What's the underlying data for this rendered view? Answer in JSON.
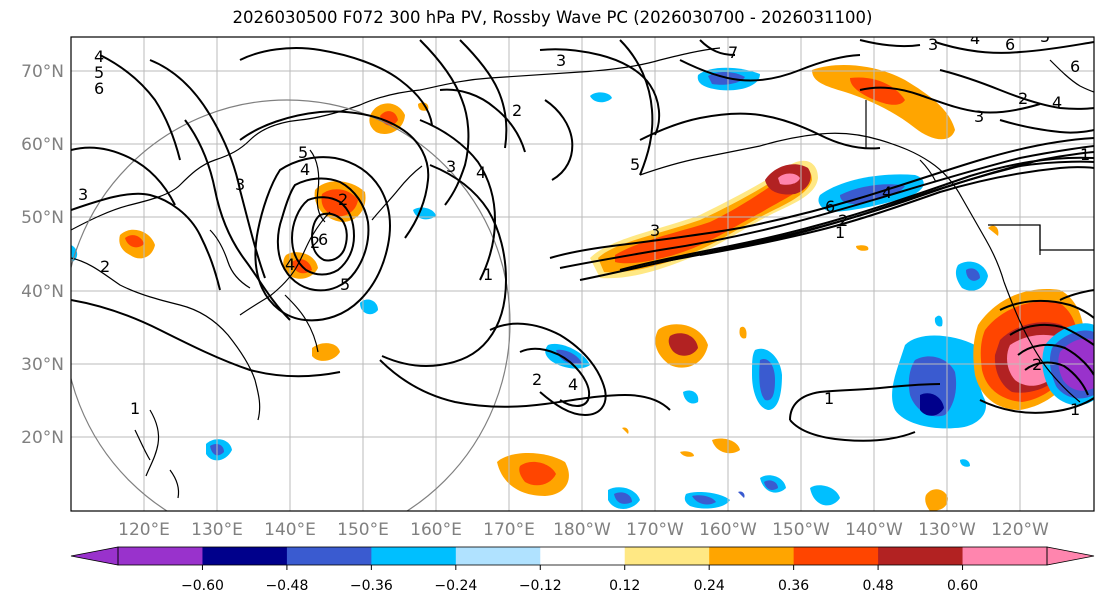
{
  "title": "2026030500 F072 300 hPa PV, Rossby Wave PC (2026030700 - 2026031100)",
  "lat_labels": [
    "70°N",
    "60°N",
    "50°N",
    "40°N",
    "30°N",
    "20°N"
  ],
  "lon_labels": [
    "120°E",
    "130°E",
    "140°E",
    "150°E",
    "160°E",
    "170°E",
    "180°W",
    "170°W",
    "160°W",
    "150°W",
    "140°W",
    "130°W",
    "120°W"
  ],
  "colorbar": {
    "colors": [
      "#9932cc",
      "#00008b",
      "#3a5bd0",
      "#00bfff",
      "#b0e2ff",
      "#ffffff",
      "#ffe884",
      "#ffa500",
      "#ff4500",
      "#b22222",
      "#ff85ae"
    ],
    "tick_labels": [
      "−0.60",
      "−0.48",
      "−0.36",
      "−0.24",
      "−0.12",
      "0.12",
      "0.24",
      "0.36",
      "0.48",
      "0.60"
    ],
    "under_color": "#9932cc",
    "over_color": "#ff85ae"
  },
  "contour_labels": [
    "4",
    "5",
    "6",
    "3",
    "3",
    "2",
    "4",
    "5",
    "2",
    "2",
    "4",
    "3",
    "5",
    "1",
    "6",
    "4",
    "2",
    "3",
    "1",
    "4",
    "2",
    "1",
    "5",
    "7",
    "3",
    "1",
    "2",
    "6",
    "6",
    "4",
    "3",
    "2",
    "4",
    "1",
    "2",
    "3",
    "1",
    "4",
    "6",
    "5"
  ]
}
